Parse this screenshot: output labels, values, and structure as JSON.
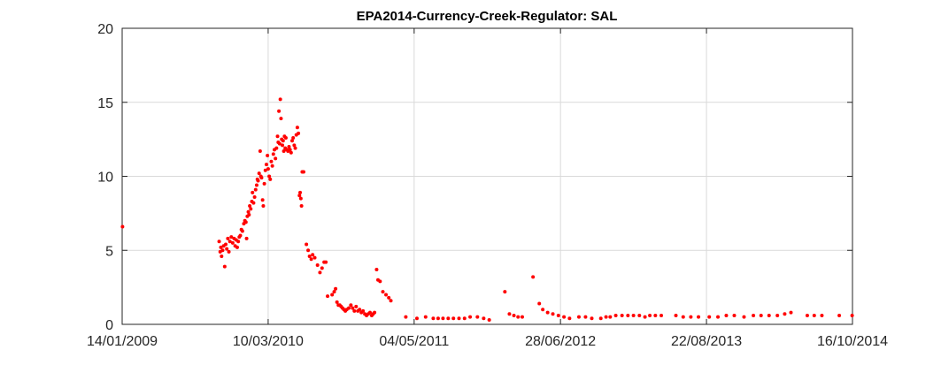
{
  "chart_data": {
    "type": "scatter",
    "title": "EPA2014-Currency-Creek-Regulator: SAL",
    "xlabel": "",
    "ylabel": "",
    "x_axis_kind": "date",
    "xlim": [
      "2009-01-14",
      "2014-10-16"
    ],
    "ylim": [
      0,
      20
    ],
    "x_ticks": [
      "2009-01-14",
      "2010-03-10",
      "2011-05-04",
      "2012-06-28",
      "2013-08-22",
      "2014-10-16"
    ],
    "x_tick_labels": [
      "14/01/2009",
      "10/03/2010",
      "04/05/2011",
      "28/06/2012",
      "22/08/2013",
      "16/10/2014"
    ],
    "y_ticks": [
      0,
      5,
      10,
      15,
      20
    ],
    "y_tick_labels": [
      "0",
      "5",
      "10",
      "15",
      "20"
    ],
    "grid": true,
    "legend": "none",
    "marker_color": "#ff0000",
    "series": [
      {
        "points": [
          [
            "2009-01-15",
            6.6
          ],
          [
            "2009-10-20",
            5.6
          ],
          [
            "2009-10-23",
            4.9
          ],
          [
            "2009-10-25",
            5.2
          ],
          [
            "2009-10-27",
            4.6
          ],
          [
            "2009-10-30",
            5.0
          ],
          [
            "2009-11-02",
            5.3
          ],
          [
            "2009-11-05",
            3.9
          ],
          [
            "2009-11-08",
            5.4
          ],
          [
            "2009-11-11",
            5.1
          ],
          [
            "2009-11-14",
            5.8
          ],
          [
            "2009-11-17",
            4.9
          ],
          [
            "2009-11-20",
            5.6
          ],
          [
            "2009-11-24",
            5.9
          ],
          [
            "2009-11-28",
            5.5
          ],
          [
            "2009-12-02",
            5.8
          ],
          [
            "2009-12-05",
            5.3
          ],
          [
            "2009-12-08",
            5.7
          ],
          [
            "2009-12-11",
            5.2
          ],
          [
            "2009-12-14",
            5.6
          ],
          [
            "2009-12-17",
            5.9
          ],
          [
            "2009-12-20",
            6.0
          ],
          [
            "2009-12-23",
            6.4
          ],
          [
            "2009-12-26",
            6.3
          ],
          [
            "2009-12-30",
            6.8
          ],
          [
            "2010-01-02",
            7.0
          ],
          [
            "2010-01-05",
            6.9
          ],
          [
            "2010-01-07",
            5.8
          ],
          [
            "2010-01-09",
            7.3
          ],
          [
            "2010-01-12",
            7.6
          ],
          [
            "2010-01-14",
            7.4
          ],
          [
            "2010-01-16",
            8.0
          ],
          [
            "2010-01-19",
            7.8
          ],
          [
            "2010-01-22",
            8.3
          ],
          [
            "2010-01-24",
            8.9
          ],
          [
            "2010-01-27",
            8.2
          ],
          [
            "2010-01-30",
            8.6
          ],
          [
            "2010-02-02",
            9.1
          ],
          [
            "2010-02-05",
            9.4
          ],
          [
            "2010-02-07",
            9.8
          ],
          [
            "2010-02-09",
            9.7
          ],
          [
            "2010-02-12",
            10.2
          ],
          [
            "2010-02-15",
            11.7
          ],
          [
            "2010-02-17",
            10.0
          ],
          [
            "2010-02-19",
            9.9
          ],
          [
            "2010-02-22",
            8.4
          ],
          [
            "2010-02-24",
            8.0
          ],
          [
            "2010-02-27",
            9.5
          ],
          [
            "2010-03-02",
            10.4
          ],
          [
            "2010-03-05",
            10.8
          ],
          [
            "2010-03-08",
            11.4
          ],
          [
            "2010-03-10",
            10.5
          ],
          [
            "2010-03-13",
            10.0
          ],
          [
            "2010-03-16",
            9.8
          ],
          [
            "2010-03-19",
            11.0
          ],
          [
            "2010-03-22",
            10.7
          ],
          [
            "2010-03-25",
            11.5
          ],
          [
            "2010-03-28",
            11.8
          ],
          [
            "2010-03-31",
            11.2
          ],
          [
            "2010-04-03",
            11.9
          ],
          [
            "2010-04-06",
            12.7
          ],
          [
            "2010-04-08",
            12.3
          ],
          [
            "2010-04-10",
            14.4
          ],
          [
            "2010-04-12",
            12.2
          ],
          [
            "2010-04-14",
            15.2
          ],
          [
            "2010-04-16",
            13.9
          ],
          [
            "2010-04-18",
            12.5
          ],
          [
            "2010-04-20",
            12.1
          ],
          [
            "2010-04-22",
            12.4
          ],
          [
            "2010-04-24",
            11.7
          ],
          [
            "2010-04-26",
            12.7
          ],
          [
            "2010-04-28",
            11.9
          ],
          [
            "2010-04-30",
            12.6
          ],
          [
            "2010-05-03",
            11.8
          ],
          [
            "2010-05-06",
            11.7
          ],
          [
            "2010-05-09",
            12.0
          ],
          [
            "2010-05-12",
            11.8
          ],
          [
            "2010-05-15",
            11.6
          ],
          [
            "2010-05-18",
            12.4
          ],
          [
            "2010-05-21",
            12.6
          ],
          [
            "2010-05-24",
            12.1
          ],
          [
            "2010-05-27",
            11.9
          ],
          [
            "2010-05-30",
            12.8
          ],
          [
            "2010-06-02",
            13.3
          ],
          [
            "2010-06-05",
            12.9
          ],
          [
            "2010-06-08",
            8.7
          ],
          [
            "2010-06-10",
            8.9
          ],
          [
            "2010-06-12",
            8.5
          ],
          [
            "2010-06-14",
            8.0
          ],
          [
            "2010-06-16",
            10.3
          ],
          [
            "2010-06-20",
            10.3
          ],
          [
            "2010-06-28",
            5.4
          ],
          [
            "2010-07-03",
            5.0
          ],
          [
            "2010-07-07",
            4.6
          ],
          [
            "2010-07-12",
            4.4
          ],
          [
            "2010-07-16",
            4.7
          ],
          [
            "2010-07-22",
            4.5
          ],
          [
            "2010-07-30",
            4.0
          ],
          [
            "2010-08-06",
            3.5
          ],
          [
            "2010-08-12",
            3.8
          ],
          [
            "2010-08-18",
            4.2
          ],
          [
            "2010-08-23",
            4.2
          ],
          [
            "2010-08-28",
            1.9
          ],
          [
            "2010-09-10",
            2.0
          ],
          [
            "2010-09-16",
            2.2
          ],
          [
            "2010-09-20",
            2.4
          ],
          [
            "2010-09-24",
            1.5
          ],
          [
            "2010-09-28",
            1.3
          ],
          [
            "2010-10-02",
            1.3
          ],
          [
            "2010-10-06",
            1.2
          ],
          [
            "2010-10-10",
            1.1
          ],
          [
            "2010-10-14",
            1.0
          ],
          [
            "2010-10-18",
            0.9
          ],
          [
            "2010-10-22",
            1.0
          ],
          [
            "2010-10-28",
            1.1
          ],
          [
            "2010-11-03",
            1.3
          ],
          [
            "2010-11-08",
            1.1
          ],
          [
            "2010-11-13",
            0.9
          ],
          [
            "2010-11-18",
            1.2
          ],
          [
            "2010-11-23",
            0.9
          ],
          [
            "2010-11-28",
            1.0
          ],
          [
            "2010-12-03",
            0.8
          ],
          [
            "2010-12-08",
            0.9
          ],
          [
            "2010-12-13",
            0.7
          ],
          [
            "2010-12-18",
            0.6
          ],
          [
            "2010-12-23",
            0.7
          ],
          [
            "2010-12-28",
            0.8
          ],
          [
            "2011-01-02",
            0.6
          ],
          [
            "2011-01-06",
            0.7
          ],
          [
            "2011-01-10",
            0.8
          ],
          [
            "2011-01-16",
            3.7
          ],
          [
            "2011-01-20",
            3.0
          ],
          [
            "2011-01-26",
            2.9
          ],
          [
            "2011-02-03",
            2.2
          ],
          [
            "2011-02-12",
            2.0
          ],
          [
            "2011-02-20",
            1.8
          ],
          [
            "2011-02-26",
            1.6
          ],
          [
            "2011-04-10",
            0.5
          ],
          [
            "2011-05-12",
            0.4
          ],
          [
            "2011-06-06",
            0.5
          ],
          [
            "2011-06-28",
            0.4
          ],
          [
            "2011-07-12",
            0.4
          ],
          [
            "2011-07-26",
            0.4
          ],
          [
            "2011-08-10",
            0.4
          ],
          [
            "2011-08-25",
            0.4
          ],
          [
            "2011-09-10",
            0.4
          ],
          [
            "2011-09-26",
            0.4
          ],
          [
            "2011-10-12",
            0.5
          ],
          [
            "2011-11-02",
            0.5
          ],
          [
            "2011-11-20",
            0.4
          ],
          [
            "2011-12-06",
            0.3
          ],
          [
            "2012-01-20",
            2.2
          ],
          [
            "2012-02-02",
            0.7
          ],
          [
            "2012-02-15",
            0.6
          ],
          [
            "2012-02-27",
            0.5
          ],
          [
            "2012-03-10",
            0.5
          ],
          [
            "2012-04-10",
            3.2
          ],
          [
            "2012-04-28",
            1.4
          ],
          [
            "2012-05-08",
            1.0
          ],
          [
            "2012-05-22",
            0.8
          ],
          [
            "2012-06-06",
            0.7
          ],
          [
            "2012-06-22",
            0.6
          ],
          [
            "2012-07-08",
            0.5
          ],
          [
            "2012-07-24",
            0.4
          ],
          [
            "2012-08-20",
            0.5
          ],
          [
            "2012-09-08",
            0.5
          ],
          [
            "2012-09-26",
            0.4
          ],
          [
            "2012-10-22",
            0.4
          ],
          [
            "2012-11-06",
            0.5
          ],
          [
            "2012-11-18",
            0.5
          ],
          [
            "2012-12-04",
            0.6
          ],
          [
            "2012-12-22",
            0.6
          ],
          [
            "2013-01-08",
            0.6
          ],
          [
            "2013-01-24",
            0.6
          ],
          [
            "2013-02-10",
            0.6
          ],
          [
            "2013-02-26",
            0.5
          ],
          [
            "2013-03-12",
            0.6
          ],
          [
            "2013-03-28",
            0.6
          ],
          [
            "2013-04-14",
            0.6
          ],
          [
            "2013-05-26",
            0.6
          ],
          [
            "2013-06-16",
            0.5
          ],
          [
            "2013-07-08",
            0.5
          ],
          [
            "2013-07-30",
            0.5
          ],
          [
            "2013-08-30",
            0.5
          ],
          [
            "2013-09-24",
            0.5
          ],
          [
            "2013-10-18",
            0.6
          ],
          [
            "2013-11-10",
            0.6
          ],
          [
            "2013-12-08",
            0.5
          ],
          [
            "2014-01-04",
            0.6
          ],
          [
            "2014-01-26",
            0.6
          ],
          [
            "2014-02-18",
            0.6
          ],
          [
            "2014-03-14",
            0.6
          ],
          [
            "2014-04-04",
            0.7
          ],
          [
            "2014-04-22",
            0.8
          ],
          [
            "2014-06-08",
            0.6
          ],
          [
            "2014-06-28",
            0.6
          ],
          [
            "2014-07-20",
            0.6
          ],
          [
            "2014-09-08",
            0.6
          ],
          [
            "2014-10-15",
            0.6
          ]
        ]
      }
    ]
  }
}
